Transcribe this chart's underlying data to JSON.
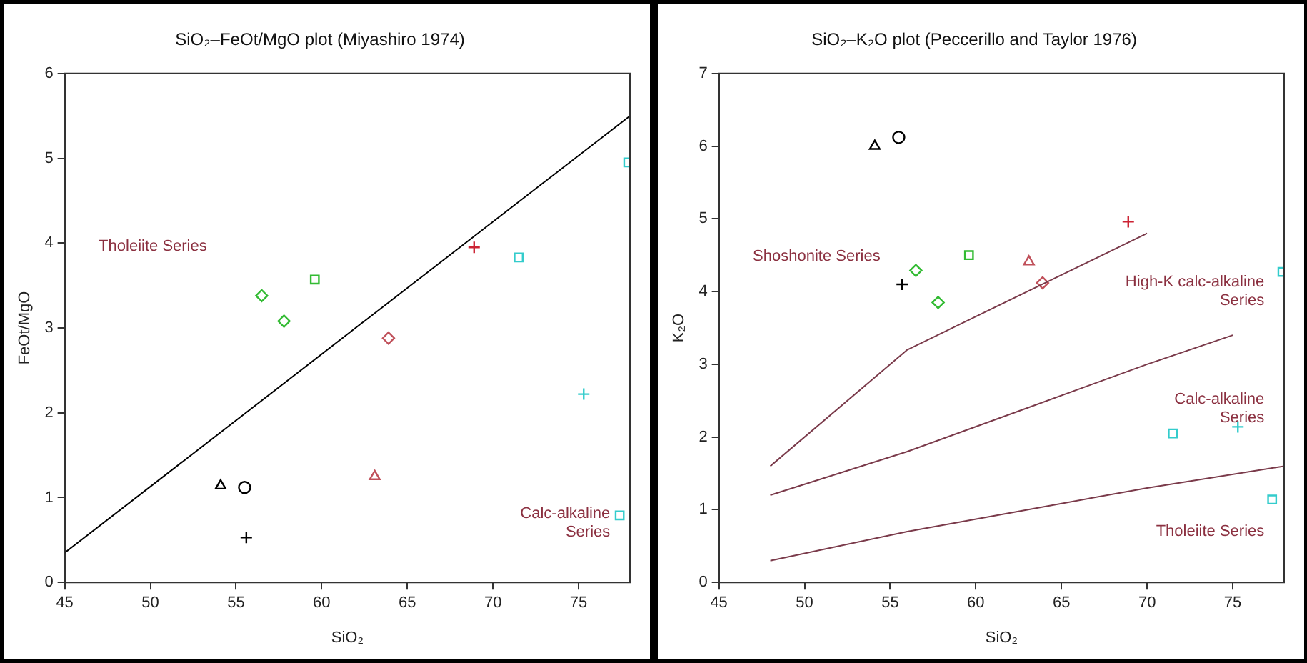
{
  "chart_data": [
    {
      "type": "scatter",
      "title": "SiO₂–FeOt/MgO plot (Miyashiro 1974)",
      "xlabel": "SiO₂",
      "ylabel": "FeOt/MgO",
      "xlim": [
        45,
        78
      ],
      "xticks": [
        45,
        50,
        55,
        60,
        65,
        70,
        75
      ],
      "ylim": [
        0,
        6
      ],
      "yticks": [
        0,
        1,
        2,
        3,
        4,
        5,
        6
      ],
      "grid": false,
      "legend": false,
      "annotations": [
        "Tholeiite Series",
        "Calc-alkaline Series"
      ],
      "series": [
        {
          "type": "line",
          "x": [
            45,
            78
          ],
          "values": [
            0.35,
            5.5
          ],
          "color": "#000000",
          "marker": "none",
          "line_style": "solid"
        },
        {
          "x": [
            54.1
          ],
          "values": [
            1.14
          ],
          "color": "#000000",
          "marker": "triangle"
        },
        {
          "x": [
            55.5
          ],
          "values": [
            1.12
          ],
          "color": "#000000",
          "marker": "circle"
        },
        {
          "x": [
            55.6
          ],
          "values": [
            0.53
          ],
          "color": "#000000",
          "marker": "cross"
        },
        {
          "x": [
            56.5,
            57.8
          ],
          "values": [
            3.38,
            3.08
          ],
          "color": "#33bb33",
          "marker": "diamond"
        },
        {
          "x": [
            59.6
          ],
          "values": [
            3.57
          ],
          "color": "#33bb33",
          "marker": "square"
        },
        {
          "x": [
            63.9
          ],
          "values": [
            2.88
          ],
          "color": "#c0505a",
          "marker": "diamond"
        },
        {
          "x": [
            63.1
          ],
          "values": [
            1.25
          ],
          "color": "#c0505a",
          "marker": "triangle"
        },
        {
          "x": [
            68.9
          ],
          "values": [
            3.95
          ],
          "color": "#cc2233",
          "marker": "cross"
        },
        {
          "x": [
            71.5,
            77.9,
            77.4
          ],
          "values": [
            3.83,
            4.95,
            0.79
          ],
          "color": "#33cccc",
          "marker": "square"
        },
        {
          "x": [
            75.3
          ],
          "values": [
            2.22
          ],
          "color": "#33cccc",
          "marker": "cross"
        }
      ]
    },
    {
      "type": "scatter",
      "title": "SiO₂–K₂O plot (Peccerillo and Taylor 1976)",
      "xlabel": "SiO₂",
      "ylabel": "K₂O",
      "xlim": [
        45,
        78
      ],
      "xticks": [
        45,
        50,
        55,
        60,
        65,
        70,
        75
      ],
      "ylim": [
        0,
        7
      ],
      "yticks": [
        0,
        1,
        2,
        3,
        4,
        5,
        6,
        7
      ],
      "grid": false,
      "legend": false,
      "annotations": [
        "Shoshonite Series",
        "High-K calc-alkaline Series",
        "Calc-alkaline Series",
        "Tholeiite Series"
      ],
      "series": [
        {
          "type": "line",
          "x": [
            48,
            56,
            63,
            70
          ],
          "values": [
            1.6,
            3.2,
            4.0,
            4.8
          ],
          "color": "#7a3a4a",
          "marker": "none",
          "line_style": "solid"
        },
        {
          "type": "line",
          "x": [
            48,
            56,
            63,
            70,
            75
          ],
          "values": [
            1.2,
            1.8,
            2.4,
            3.0,
            3.4
          ],
          "color": "#7a3a4a",
          "marker": "none",
          "line_style": "solid"
        },
        {
          "type": "line",
          "x": [
            48,
            56,
            63,
            70,
            78
          ],
          "values": [
            0.3,
            0.7,
            1.0,
            1.3,
            1.6
          ],
          "color": "#7a3a4a",
          "marker": "none",
          "line_style": "solid"
        },
        {
          "x": [
            54.1
          ],
          "values": [
            6.0
          ],
          "color": "#000000",
          "marker": "triangle"
        },
        {
          "x": [
            55.5
          ],
          "values": [
            6.12
          ],
          "color": "#000000",
          "marker": "circle"
        },
        {
          "x": [
            55.7
          ],
          "values": [
            4.1
          ],
          "color": "#000000",
          "marker": "cross"
        },
        {
          "x": [
            56.5,
            57.8
          ],
          "values": [
            4.29,
            3.85
          ],
          "color": "#33bb33",
          "marker": "diamond"
        },
        {
          "x": [
            59.6
          ],
          "values": [
            4.5
          ],
          "color": "#33bb33",
          "marker": "square"
        },
        {
          "x": [
            63.1
          ],
          "values": [
            4.41
          ],
          "color": "#c0505a",
          "marker": "triangle"
        },
        {
          "x": [
            63.9
          ],
          "values": [
            4.12
          ],
          "color": "#c0505a",
          "marker": "diamond"
        },
        {
          "x": [
            68.9
          ],
          "values": [
            4.96
          ],
          "color": "#cc2233",
          "marker": "cross"
        },
        {
          "x": [
            71.5,
            77.9,
            77.3
          ],
          "values": [
            2.05,
            4.27,
            1.14
          ],
          "color": "#33cccc",
          "marker": "square"
        },
        {
          "x": [
            75.3
          ],
          "values": [
            2.14
          ],
          "color": "#33cccc",
          "marker": "cross"
        }
      ]
    }
  ]
}
